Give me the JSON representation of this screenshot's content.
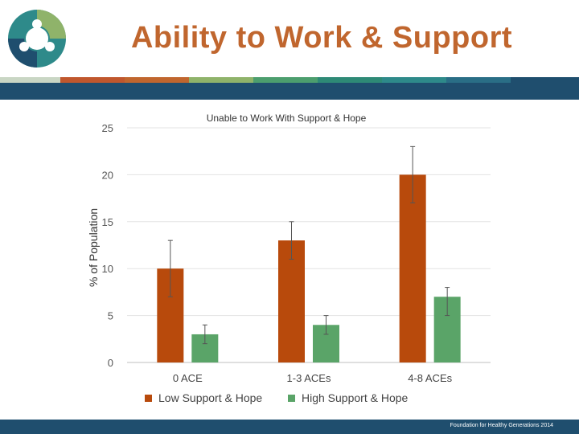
{
  "slide": {
    "title": "Ability to Work & Support",
    "footer": "Foundation for Healthy Generations 2014"
  },
  "colors": {
    "title": "#c0662e",
    "band": "#1f4e6e",
    "band_segments": [
      "#c9d6c4",
      "#c0572d",
      "#c0662e",
      "#8fb36a",
      "#4c9e6e",
      "#2e8a76",
      "#2e8a8a",
      "#2a6e86",
      "#1f4e6e"
    ],
    "low_support": "#b84a0c",
    "high_support": "#5aa468",
    "logo_teal": "#2e8a8a",
    "logo_green": "#8fb36a",
    "logo_navy": "#1f4e6e"
  },
  "chart_data": {
    "type": "bar",
    "title": "Unable to Work With Support & Hope",
    "ylabel": "% of Population",
    "xlabel": "",
    "categories": [
      "0 ACE",
      "1-3 ACEs",
      "4-8 ACEs"
    ],
    "ylim": [
      0,
      25
    ],
    "yticks": [
      0,
      5,
      10,
      15,
      20,
      25
    ],
    "grid": true,
    "legend_position": "bottom",
    "series": [
      {
        "name": "Low Support & Hope",
        "values": [
          10,
          13,
          20
        ],
        "error_low": [
          7,
          11,
          17
        ],
        "error_high": [
          13,
          15,
          23
        ],
        "color": "#b84a0c"
      },
      {
        "name": "High Support & Hope",
        "values": [
          3,
          4,
          7
        ],
        "error_low": [
          2,
          3,
          5
        ],
        "error_high": [
          4,
          5,
          8
        ],
        "color": "#5aa468"
      }
    ]
  }
}
